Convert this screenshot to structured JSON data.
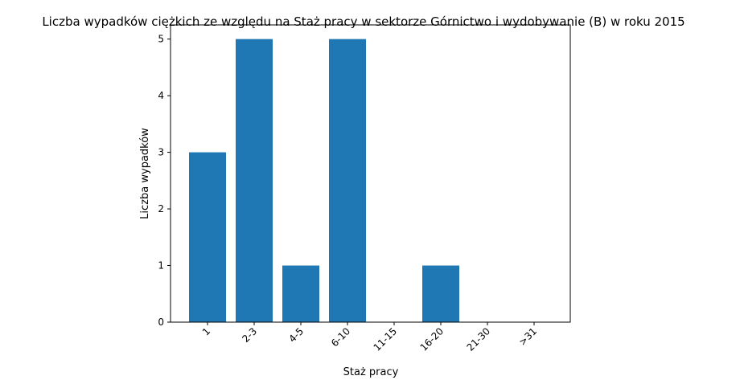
{
  "chart_data": {
    "type": "bar",
    "title": "Liczba wypadków ciężkich ze względu na Staż pracy w sektorze Górnictwo i wydobywanie (B)   w roku 2015",
    "xlabel": "Staż pracy",
    "ylabel": "Liczba wypadków",
    "categories": [
      "1",
      "2-3",
      "4-5",
      "6-10",
      "11-15",
      "16-20",
      "21-30",
      ">31"
    ],
    "values": [
      3,
      5,
      1,
      5,
      0,
      1,
      0,
      0
    ],
    "yticks": [
      "0",
      "1",
      "2",
      "3",
      "4",
      "5"
    ],
    "ylim": [
      0,
      5.25
    ],
    "grid": false,
    "bar_color": "#1f77b4"
  }
}
